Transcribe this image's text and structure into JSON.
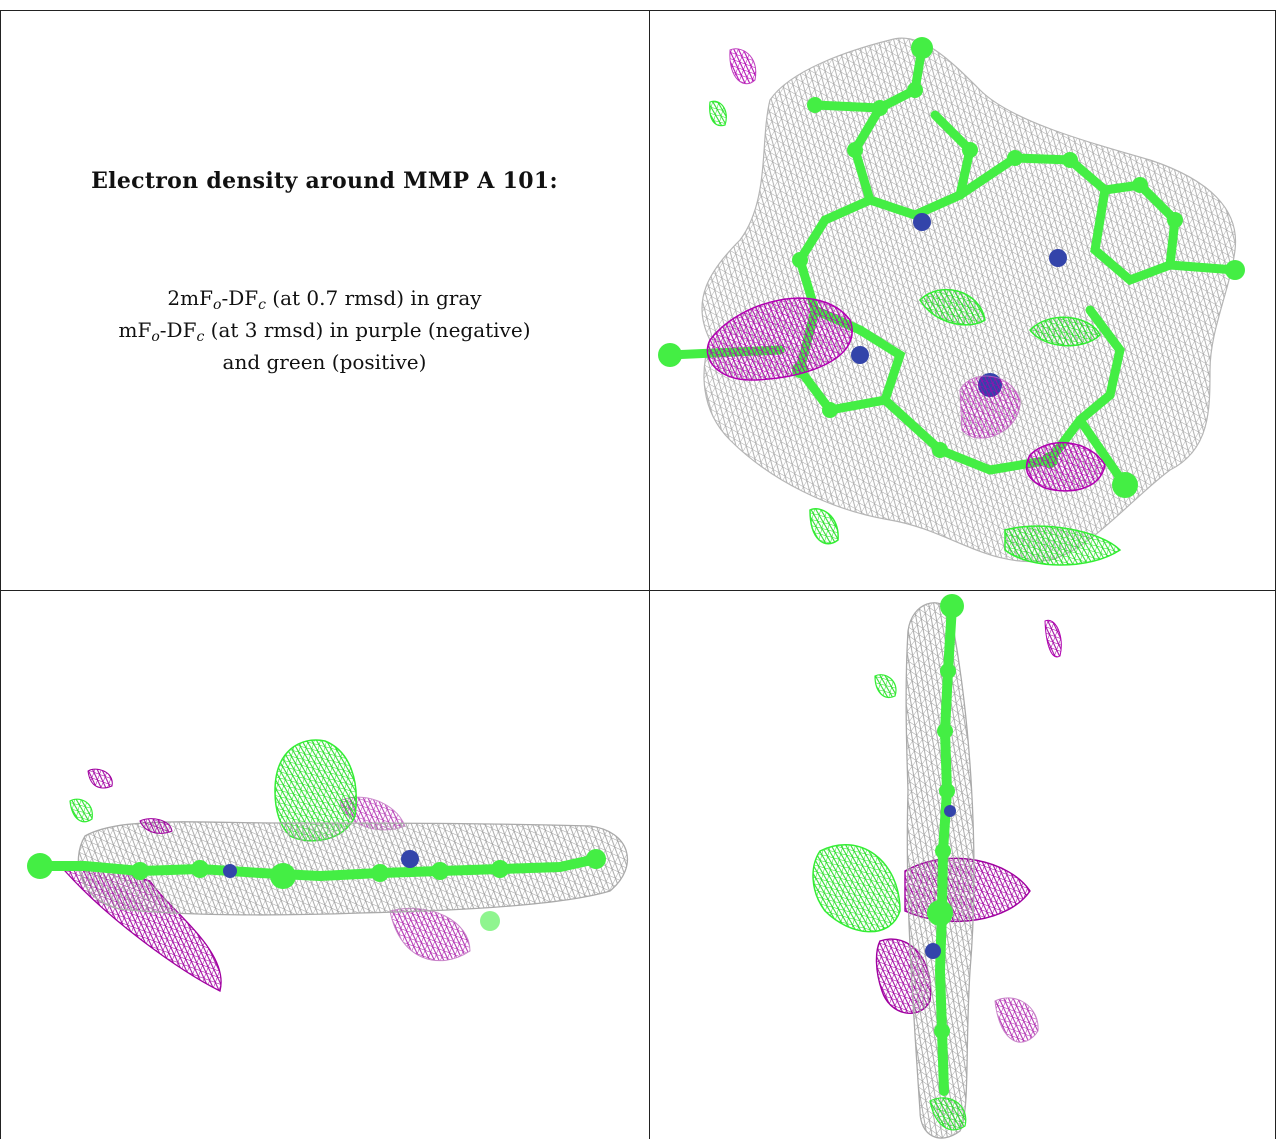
{
  "caption": {
    "title": "Electron density around MMP A 101:",
    "line1": {
      "pre": "2mF",
      "sub1": "o",
      "mid": "-DF",
      "sub2": "c",
      "post": " (at 0.7 rmsd) in gray"
    },
    "line2": {
      "pre": "mF",
      "sub1": "o",
      "mid": "-DF",
      "sub2": "c",
      "post": " (at 3 rmsd) in purple (negative)"
    },
    "line3": "and green (positive)"
  },
  "colors": {
    "mesh_gray": "#a8a8a8",
    "negative_purple": "#b000b0",
    "positive_green": "#33ff33",
    "carbon_green": "#44ee44",
    "nitrogen_blue": "#3344aa",
    "border": "#222222"
  },
  "panels": [
    "top-right-view",
    "bottom-left-view",
    "bottom-right-view"
  ]
}
